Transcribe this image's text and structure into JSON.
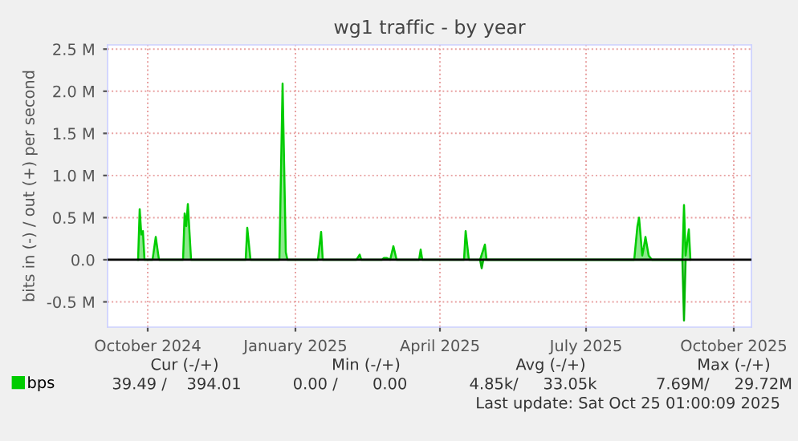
{
  "chart_data": {
    "type": "area",
    "title": "wg1 traffic - by year",
    "ylabel": "bits in (-) / out (+) per second",
    "xlim": [
      "2024-09-06",
      "2025-10-12"
    ],
    "xticks": [
      {
        "value": "2024-10-01",
        "label": "October 2024"
      },
      {
        "value": "2025-01-01",
        "label": "January 2025"
      },
      {
        "value": "2025-04-01",
        "label": "April 2025"
      },
      {
        "value": "2025-07-01",
        "label": "July 2025"
      },
      {
        "value": "2025-10-01",
        "label": "October 2025"
      }
    ],
    "ylim": [
      -0.8,
      2.55
    ],
    "yticks": [
      {
        "value": -0.5,
        "label": "-0.5 M"
      },
      {
        "value": 0,
        "label": "0.0"
      },
      {
        "value": 0.5,
        "label": "0.5 M"
      },
      {
        "value": 1.0,
        "label": "1.0 M"
      },
      {
        "value": 1.5,
        "label": "1.5 M"
      },
      {
        "value": 2.0,
        "label": "2.0 M"
      },
      {
        "value": 2.5,
        "label": "2.5 M"
      }
    ],
    "grid": true,
    "legend": "bottom left",
    "series": [
      {
        "name": "bps",
        "color": "#00cc00",
        "x": [
          "2024-09-25",
          "2024-09-26",
          "2024-09-27",
          "2024-09-28",
          "2024-09-29",
          "2024-10-04",
          "2024-10-06",
          "2024-10-08",
          "2024-10-23",
          "2024-10-24",
          "2024-10-25",
          "2024-10-26",
          "2024-10-28",
          "2024-12-01",
          "2024-12-02",
          "2024-12-04",
          "2024-12-22",
          "2024-12-24",
          "2024-12-26",
          "2024-12-27",
          "2025-01-15",
          "2025-01-17",
          "2025-01-18",
          "2025-02-08",
          "2025-02-10",
          "2025-02-11",
          "2025-02-24",
          "2025-02-25",
          "2025-02-27",
          "2025-03-01",
          "2025-03-03",
          "2025-03-04",
          "2025-03-05",
          "2025-03-19",
          "2025-03-20",
          "2025-03-21",
          "2025-04-16",
          "2025-04-17",
          "2025-04-19",
          "2025-04-26",
          "2025-04-29",
          "2025-04-30",
          "2025-07-31",
          "2025-08-02",
          "2025-08-03",
          "2025-08-05",
          "2025-08-06",
          "2025-08-07",
          "2025-08-09",
          "2025-08-11",
          "2025-08-30",
          "2025-08-31",
          "2025-09-01",
          "2025-09-03",
          "2025-09-04"
        ],
        "values": [
          0,
          0.6,
          0.3,
          0.34,
          0,
          0,
          0.27,
          0,
          0,
          0.55,
          0.4,
          0.66,
          0,
          0,
          0.38,
          0,
          0,
          2.09,
          0.09,
          0,
          0,
          0.33,
          0,
          0,
          0.06,
          0,
          0,
          0.02,
          0.02,
          0,
          0.16,
          0.08,
          0,
          0,
          0.12,
          0,
          0,
          0.34,
          0,
          0,
          0.18,
          0,
          0,
          0.4,
          0.5,
          0.05,
          0.15,
          0.27,
          0.05,
          0,
          0,
          0.65,
          0.05,
          0.36,
          0
        ]
      },
      {
        "color": "#00b400",
        "x": [
          "2025-04-26",
          "2025-04-27",
          "2025-04-28",
          "2025-08-30",
          "2025-08-31",
          "2025-09-01"
        ],
        "values": [
          0,
          -0.1,
          0,
          0,
          -0.72,
          0
        ]
      }
    ],
    "ref_lines": [
      {
        "axis": "y",
        "value": 0,
        "color": "#000000"
      }
    ],
    "annotations": [
      "Cur (-/+)",
      "Min (-/+)",
      "Avg (-/+)",
      "Max (-/+)",
      "39.49 /    394.01",
      "0.00 /       0.00",
      "4.85k/     33.05k",
      "7.69M/     29.72M",
      "Last update: Sat Oct 25 01:00:09 2025"
    ]
  }
}
